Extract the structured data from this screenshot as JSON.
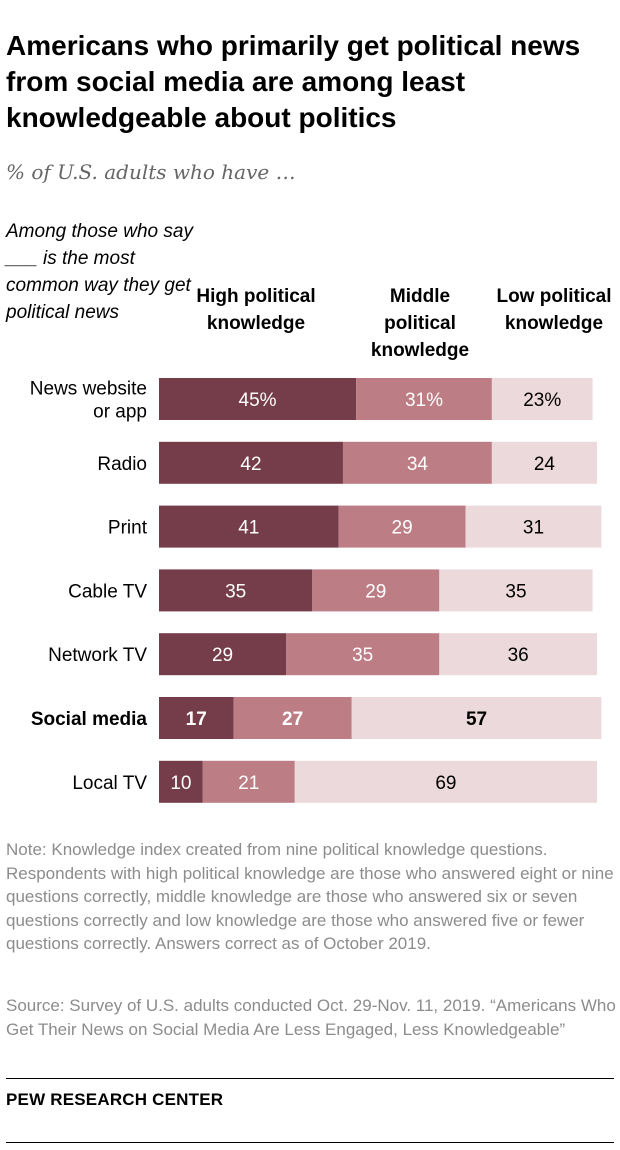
{
  "header": {
    "title": "Americans who primarily get political news from social media are among least knowledgeable about politics",
    "subtitle": "% of U.S. adults who have …"
  },
  "row_header": "Among those who say ___ is the most common way they get political news",
  "column_headers": [
    "High political knowledge",
    "Middle political knowledge",
    "Low political knowledge"
  ],
  "colors": {
    "high": "#743d49",
    "middle": "#bc7d85",
    "low": "#ecd9db",
    "dark_text": "#ffffff",
    "light_text": "#000000"
  },
  "chart_data": {
    "type": "bar",
    "orientation": "horizontal",
    "stacked": true,
    "categories": [
      "News website or app",
      "Radio",
      "Print",
      "Cable TV",
      "Network TV",
      "Social media",
      "Local TV"
    ],
    "category_label_lines": [
      [
        "News website",
        "or app"
      ],
      [
        "Radio"
      ],
      [
        "Print"
      ],
      [
        "Cable TV"
      ],
      [
        "Network TV"
      ],
      [
        "Social media"
      ],
      [
        "Local TV"
      ]
    ],
    "highlighted_category": "Social media",
    "series": [
      {
        "name": "High political knowledge",
        "values": [
          45,
          42,
          41,
          35,
          29,
          17,
          10
        ]
      },
      {
        "name": "Middle political knowledge",
        "values": [
          31,
          34,
          29,
          29,
          35,
          27,
          21
        ]
      },
      {
        "name": "Low political knowledge",
        "values": [
          23,
          24,
          31,
          35,
          36,
          57,
          69
        ]
      }
    ],
    "value_labels": [
      [
        "45%",
        "31%",
        "23%"
      ],
      [
        "42",
        "34",
        "24"
      ],
      [
        "41",
        "29",
        "31"
      ],
      [
        "35",
        "29",
        "35"
      ],
      [
        "29",
        "35",
        "36"
      ],
      [
        "17",
        "27",
        "57"
      ],
      [
        "10",
        "21",
        "69"
      ]
    ],
    "xlim": [
      0,
      100
    ],
    "grid": false,
    "legend": "column headers above bars"
  },
  "notes": {
    "note": "Note: Knowledge index created from nine political knowledge questions. Respondents with high political knowledge are those who answered eight or nine questions correctly, middle knowledge are those who answered six or seven questions correctly and low knowledge are those who answered five or fewer questions correctly. Answers correct as of October 2019.",
    "source": "Source: Survey of U.S. adults conducted Oct. 29-Nov. 11, 2019. “Americans Who Get Their News on Social Media Are Less Engaged, Less Knowledgeable”"
  },
  "footer": {
    "org": "PEW RESEARCH CENTER"
  }
}
